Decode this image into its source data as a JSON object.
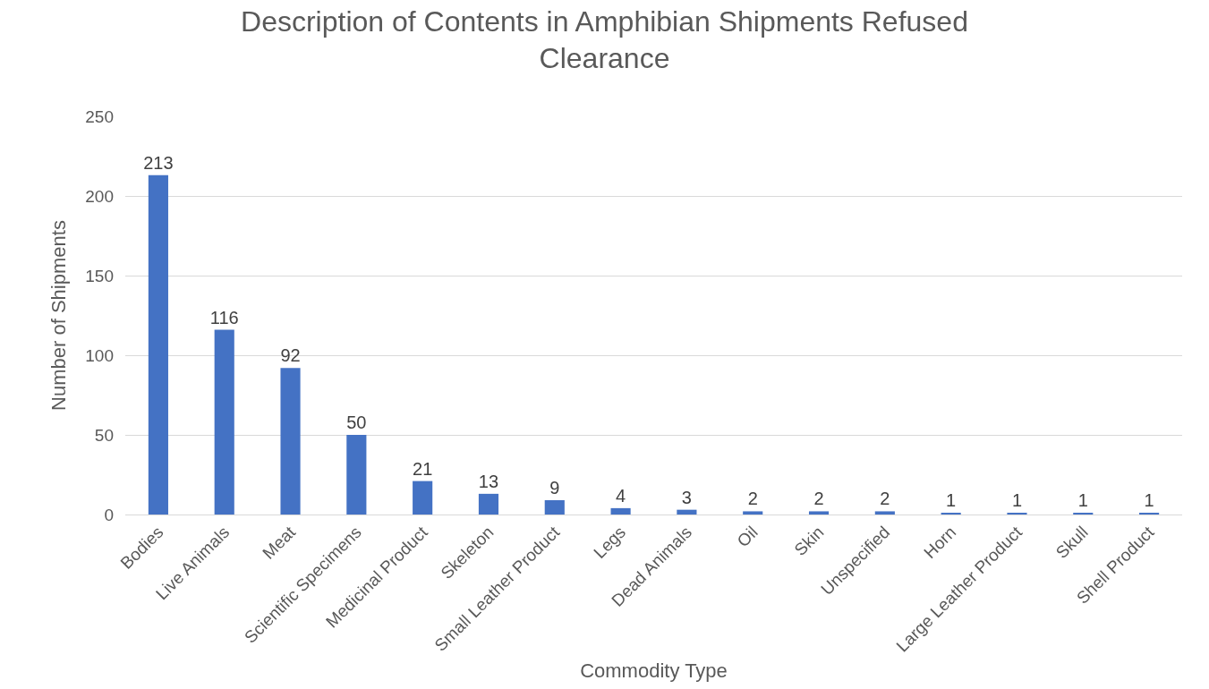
{
  "chart_data": {
    "type": "bar",
    "title": "Description of Contents in Amphibian Shipments Refused\nClearance",
    "xlabel": "Commodity Type",
    "ylabel": "Number of Shipments",
    "categories": [
      "Bodies",
      "Live Animals",
      "Meat",
      "Scientific Specimens",
      "Medicinal Product",
      "Skeleton",
      "Small Leather Product",
      "Legs",
      "Dead Animals",
      "Oil",
      "Skin",
      "Unspecified",
      "Horn",
      "Large Leather Product",
      "Skull",
      "Shell Product"
    ],
    "values": [
      213,
      116,
      92,
      50,
      21,
      13,
      9,
      4,
      3,
      2,
      2,
      2,
      1,
      1,
      1,
      1
    ],
    "color": "#4472c4",
    "ylim": [
      0,
      250
    ],
    "yticks": [
      0,
      50,
      100,
      150,
      200,
      250
    ],
    "grid": "y",
    "data_labels": true
  }
}
